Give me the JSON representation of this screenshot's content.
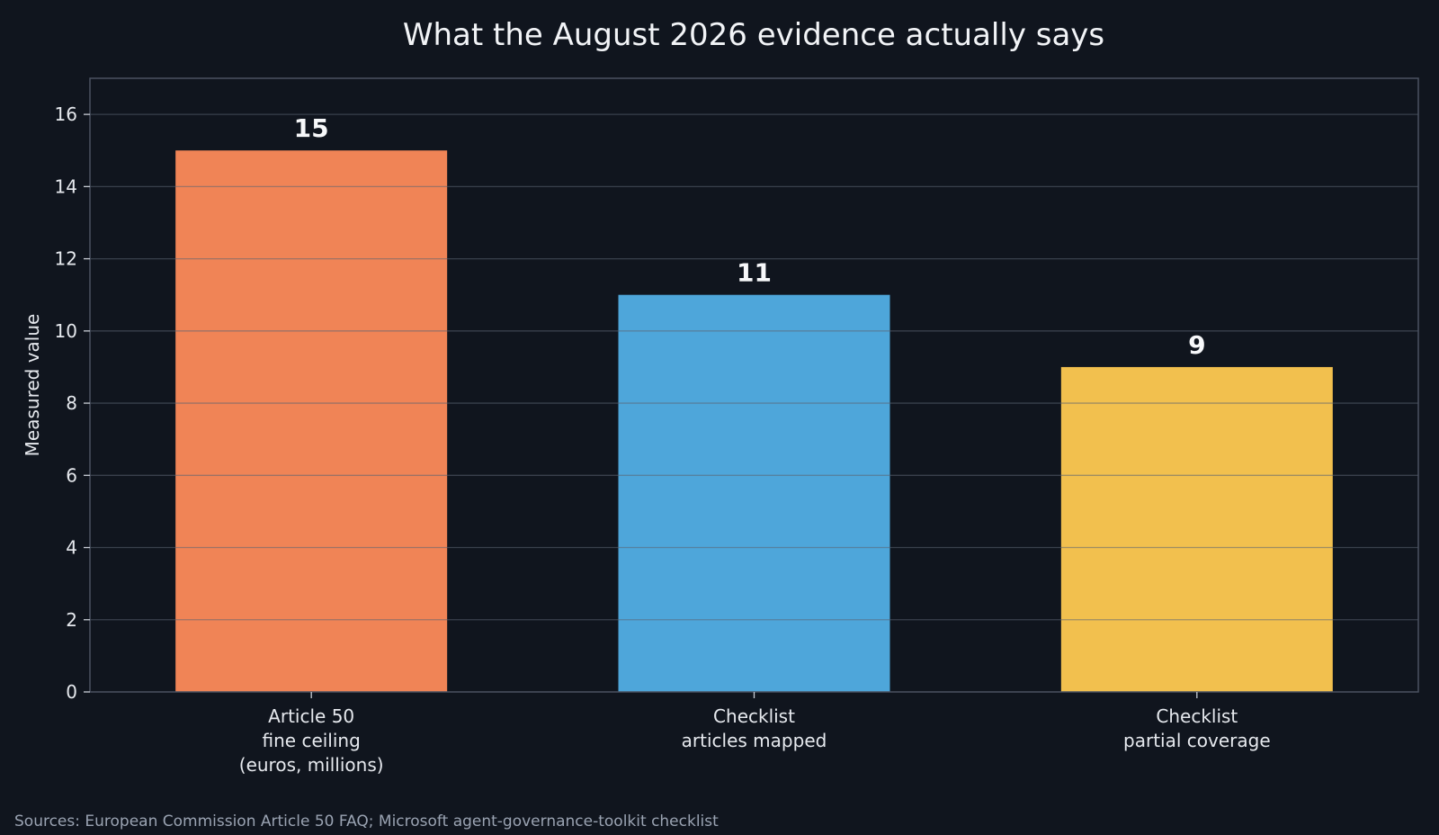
{
  "chart_data": {
    "type": "bar",
    "title": "What the August 2026 evidence actually says",
    "ylabel": "Measured value",
    "xlabel": "",
    "ylim": [
      0,
      17
    ],
    "yticks": [
      0,
      2,
      4,
      6,
      8,
      10,
      12,
      14,
      16
    ],
    "grid": true,
    "categories": [
      [
        "Article 50",
        "fine ceiling",
        "(euros, millions)"
      ],
      [
        "Checklist",
        "articles mapped"
      ],
      [
        "Checklist",
        "partial coverage"
      ]
    ],
    "values": [
      15,
      11,
      9
    ],
    "value_labels": [
      "15",
      "11",
      "9"
    ],
    "colors": [
      "#f08456",
      "#4ea6da",
      "#f2c04e"
    ]
  },
  "footer": {
    "source": "Sources: European Commission Article 50 FAQ; Microsoft agent-governance-toolkit checklist"
  },
  "theme": {
    "background": "#10151e",
    "text": "#e6e9ee",
    "muted_text": "#9aa3b2",
    "grid": "#2b3340",
    "axis": "#4a5261"
  }
}
